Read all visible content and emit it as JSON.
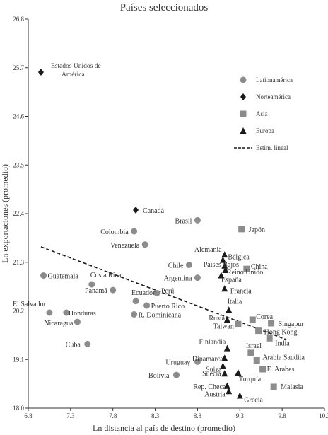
{
  "chart_data": {
    "type": "scatter",
    "title": "Países seleccionados",
    "xlabel": "Ln distancia al país de destino (promedio)",
    "ylabel": "Ln exportaciones (promedio)",
    "xlim": [
      6.8,
      10.3
    ],
    "ylim": [
      18.0,
      26.8
    ],
    "x_ticks": [
      "6.8",
      "7.3",
      "7.8",
      "8.3",
      "8.8",
      "9.3",
      "9.8",
      "10.3"
    ],
    "y_ticks": [
      "18.0",
      "19.1",
      "20.2",
      "21.3",
      "22.4",
      "23.5",
      "24.6",
      "25.7",
      "26.8"
    ],
    "grid": false,
    "legend_position": "top-right",
    "colors": {
      "latin": "#8c8c8c",
      "north": "#1a1a1a",
      "asia": "#8c8c8c",
      "europe": "#1a1a1a",
      "fit": "#1a1a1a",
      "axis": "#333333"
    },
    "legend": [
      {
        "label": "Lationamérica",
        "marker": "circle"
      },
      {
        "label": "Norteamérica",
        "marker": "diamond"
      },
      {
        "label": "Asia",
        "marker": "square"
      },
      {
        "label": "Europa",
        "marker": "triangle"
      },
      {
        "label": "Estim. lineal",
        "marker": "dashed-line"
      }
    ],
    "fit_line": {
      "x": [
        6.95,
        9.85
      ],
      "y": [
        21.65,
        19.55
      ]
    },
    "series": [
      {
        "name": "Lationamérica",
        "marker": "circle",
        "points": [
          {
            "label": "Guatemala",
            "x": 6.98,
            "y": 21.0
          },
          {
            "label": "Costa Rica",
            "x": 7.55,
            "y": 20.8
          },
          {
            "label": "Panamá",
            "x": 7.8,
            "y": 20.67
          },
          {
            "label": "El Salvador",
            "x": 7.05,
            "y": 20.16
          },
          {
            "label": "Honduras",
            "x": 7.25,
            "y": 20.16
          },
          {
            "label": "Nicaragua",
            "x": 7.38,
            "y": 19.95
          },
          {
            "label": "Cuba",
            "x": 7.5,
            "y": 19.45
          },
          {
            "label": "Colombia",
            "x": 8.05,
            "y": 22.0
          },
          {
            "label": "Venezuela",
            "x": 8.18,
            "y": 21.7
          },
          {
            "label": "Brasil",
            "x": 8.8,
            "y": 22.25
          },
          {
            "label": "Chile",
            "x": 8.7,
            "y": 21.24
          },
          {
            "label": "Argentina",
            "x": 8.8,
            "y": 20.95
          },
          {
            "label": "Perú",
            "x": 8.32,
            "y": 20.6
          },
          {
            "label": "Ecuador",
            "x": 8.07,
            "y": 20.42
          },
          {
            "label": "Puerto Rico",
            "x": 8.2,
            "y": 20.32
          },
          {
            "label": "R. Dominicana",
            "x": 8.05,
            "y": 20.12
          },
          {
            "label": "Uruguay",
            "x": 8.8,
            "y": 19.05
          },
          {
            "label": "Bolivia",
            "x": 8.55,
            "y": 18.75
          }
        ]
      },
      {
        "name": "Norteamérica",
        "marker": "diamond",
        "points": [
          {
            "label": "Estados Unidos de América",
            "x": 6.95,
            "y": 25.6
          },
          {
            "label": "Canadá",
            "x": 8.07,
            "y": 22.48
          }
        ]
      },
      {
        "name": "Asia",
        "marker": "square",
        "points": [
          {
            "label": "Japón",
            "x": 9.32,
            "y": 22.05
          },
          {
            "label": "China",
            "x": 9.38,
            "y": 21.15
          },
          {
            "label": "Corea",
            "x": 9.45,
            "y": 20.0
          },
          {
            "label": "Singapur",
            "x": 9.67,
            "y": 19.92
          },
          {
            "label": "Taiwan",
            "x": 9.28,
            "y": 19.9
          },
          {
            "label": "Hong Kong",
            "x": 9.52,
            "y": 19.75
          },
          {
            "label": "India",
            "x": 9.65,
            "y": 19.58
          },
          {
            "label": "Arabia Saudita",
            "x": 9.5,
            "y": 19.08
          },
          {
            "label": "E. Arabes",
            "x": 9.57,
            "y": 18.88
          },
          {
            "label": "Malasia",
            "x": 9.7,
            "y": 18.48
          },
          {
            "label": "Israel",
            "x": 9.43,
            "y": 19.25
          }
        ]
      },
      {
        "name": "Europa",
        "marker": "triangle",
        "points": [
          {
            "label": "Alemania",
            "x": 9.12,
            "y": 21.47
          },
          {
            "label": "Bélgica",
            "x": 9.1,
            "y": 21.35
          },
          {
            "label": "Países Bajos",
            "x": 9.12,
            "y": 21.22
          },
          {
            "label": "Reino Unido",
            "x": 9.13,
            "y": 21.12
          },
          {
            "label": "España",
            "x": 9.08,
            "y": 21.0
          },
          {
            "label": "Francia",
            "x": 9.12,
            "y": 20.7
          },
          {
            "label": "Italia",
            "x": 9.17,
            "y": 20.22
          },
          {
            "label": "Rusia",
            "x": 9.15,
            "y": 20.0
          },
          {
            "label": "Finlandia",
            "x": 9.15,
            "y": 19.35
          },
          {
            "label": "Dinamarca",
            "x": 9.12,
            "y": 19.13
          },
          {
            "label": "Suiza",
            "x": 9.1,
            "y": 18.95
          },
          {
            "label": "Suecia",
            "x": 9.12,
            "y": 18.78
          },
          {
            "label": "Turquía",
            "x": 9.28,
            "y": 18.8
          },
          {
            "label": "Rep. Checa",
            "x": 9.15,
            "y": 18.5
          },
          {
            "label": "Austria",
            "x": 9.17,
            "y": 18.38
          },
          {
            "label": "Grecia",
            "x": 9.3,
            "y": 18.28
          }
        ]
      }
    ]
  }
}
